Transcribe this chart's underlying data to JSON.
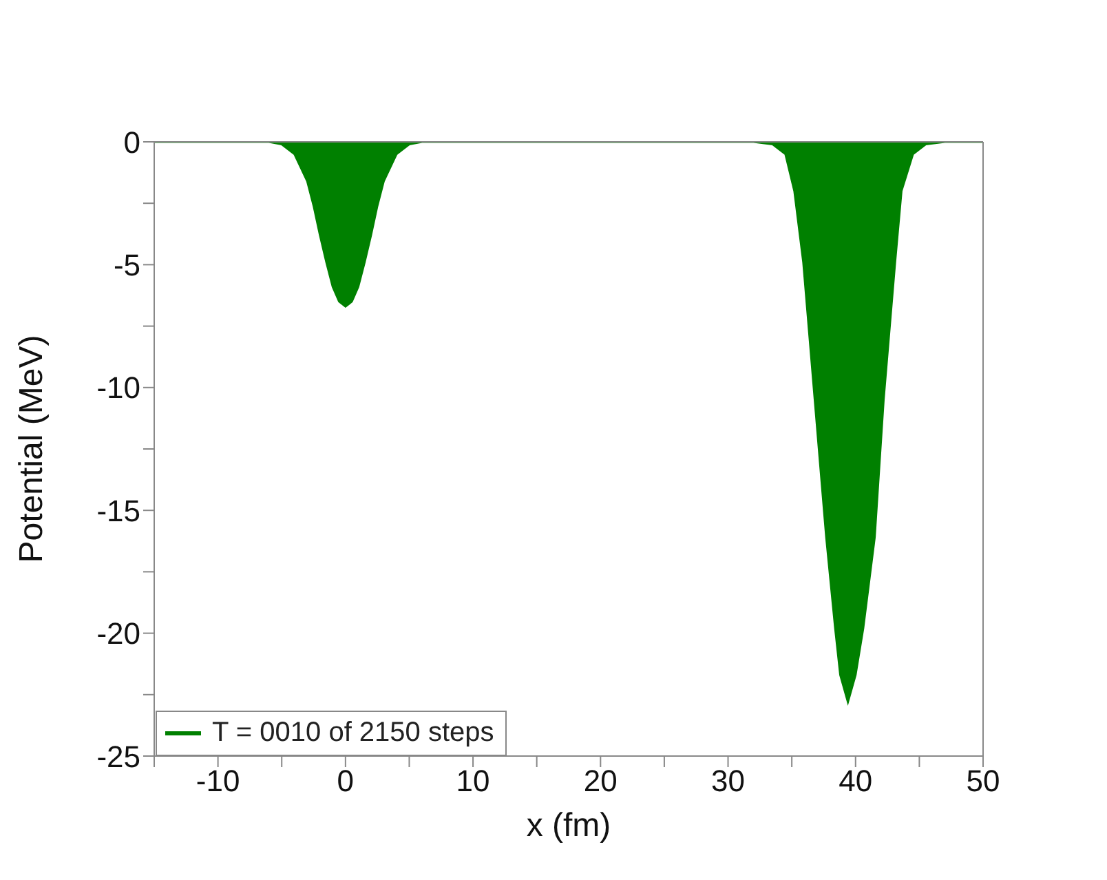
{
  "chart_data": {
    "type": "area",
    "xlabel": "x (fm)",
    "ylabel": "Potential (MeV)",
    "x": [
      -15,
      -6,
      -5,
      -4,
      -3,
      -2.5,
      -2,
      -1.5,
      -1,
      -0.5,
      0,
      0.5,
      1,
      1.5,
      2,
      2.5,
      3,
      4,
      5,
      6,
      32,
      33.5,
      34.5,
      35.2,
      35.9,
      36.8,
      37.7,
      38.4,
      38.8,
      39.4,
      40,
      40.6,
      41.5,
      42.2,
      43.1,
      43.6,
      44.5,
      45.5,
      47,
      50
    ],
    "series": [
      {
        "name": "T = 0010 of 2150 steps",
        "color": "#008000",
        "values": [
          0,
          0,
          -0.1,
          -0.5,
          -1.6,
          -2.6,
          -3.8,
          -4.9,
          -5.9,
          -6.5,
          -6.7,
          -6.5,
          -5.9,
          -4.9,
          -3.8,
          -2.6,
          -1.6,
          -0.5,
          -0.1,
          0,
          0,
          -0.1,
          -0.5,
          -2,
          -4.9,
          -10.5,
          -16.1,
          -19.8,
          -21.7,
          -22.8,
          -21.7,
          -19.8,
          -16.1,
          -10.5,
          -4.9,
          -2,
          -0.5,
          -0.1,
          0,
          0
        ]
      }
    ],
    "xlim": [
      -15,
      50
    ],
    "xticks": [
      {
        "value": -15,
        "label": null
      },
      -10,
      {
        "value": -5,
        "label": null
      },
      0,
      {
        "value": 5,
        "label": null
      },
      10,
      {
        "value": 15,
        "label": null
      },
      20,
      {
        "value": 25,
        "label": null
      },
      30,
      {
        "value": 35,
        "label": null
      },
      40,
      {
        "value": 45,
        "label": null
      },
      50
    ],
    "ylim": [
      -25,
      0
    ],
    "yticks": [
      -25,
      {
        "value": -22.5,
        "label": null
      },
      -20,
      {
        "value": -17.5,
        "label": null
      },
      -15,
      {
        "value": -12.5,
        "label": null
      },
      -10,
      {
        "value": -7.5,
        "label": null
      },
      -5,
      {
        "value": -2.5,
        "label": null
      },
      0
    ],
    "grid": false,
    "legend": "bottom left"
  }
}
